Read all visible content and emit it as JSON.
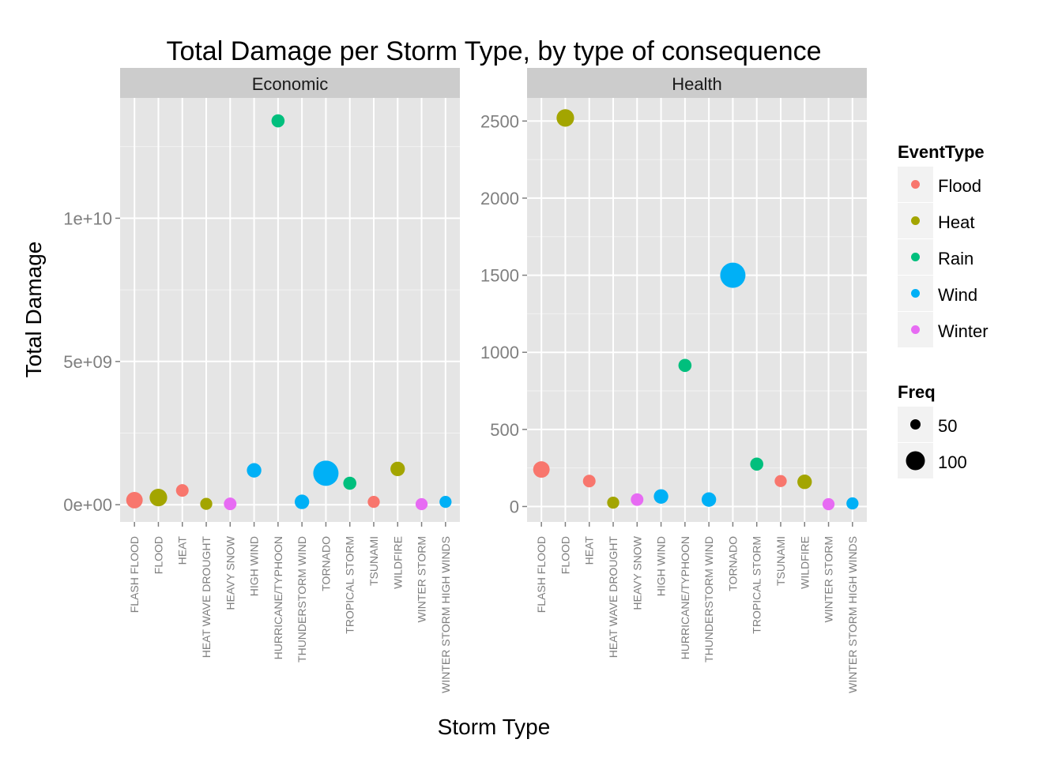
{
  "chart_data": {
    "type": "scatter",
    "title": "Total Damage per Storm Type, by type of consequence",
    "xlabel": "Storm Type",
    "ylabel": "Total Damage",
    "grid": true,
    "legend_position": "right",
    "categories": [
      "FLASH FLOOD",
      "FLOOD",
      "HEAT",
      "HEAT WAVE DROUGHT",
      "HEAVY SNOW",
      "HIGH WIND",
      "HURRICANE/TYPHOON",
      "THUNDERSTORM WIND",
      "TORNADO",
      "TROPICAL STORM",
      "TSUNAMI",
      "WILDFIRE",
      "WINTER STORM",
      "WINTER STORM HIGH WINDS"
    ],
    "event_types": [
      "Flood",
      "Heat",
      "Flood",
      "Heat",
      "Winter",
      "Wind",
      "Rain",
      "Wind",
      "Wind",
      "Rain",
      "Flood",
      "Heat",
      "Winter",
      "Wind"
    ],
    "legend_color": {
      "title": "EventType",
      "entries": [
        {
          "name": "Flood",
          "color": "#F8766D"
        },
        {
          "name": "Heat",
          "color": "#A3A500"
        },
        {
          "name": "Rain",
          "color": "#00BF7D"
        },
        {
          "name": "Wind",
          "color": "#00B0F6"
        },
        {
          "name": "Winter",
          "color": "#E76BF3"
        }
      ]
    },
    "legend_size": {
      "title": "Freq",
      "entries": [
        {
          "label": "50",
          "value": 50
        },
        {
          "label": "100",
          "value": 100
        }
      ]
    },
    "panels": [
      {
        "strip": "Economic",
        "ylim": [
          -600000000,
          14200000000
        ],
        "yticks": [
          {
            "value": 0,
            "label": "0e+00"
          },
          {
            "value": 5000000000,
            "label": "5e+09"
          },
          {
            "value": 10000000000,
            "label": "1e+10"
          }
        ],
        "yminor": [
          2500000000,
          7500000000,
          12500000000
        ],
        "values": [
          160000000,
          250000000,
          500000000,
          30000000,
          30000000,
          1200000000,
          13400000000,
          100000000,
          1100000000,
          750000000,
          100000000,
          1250000000,
          20000000,
          100000000
        ],
        "freq": [
          38,
          44,
          20,
          18,
          20,
          28,
          22,
          28,
          100,
          22,
          18,
          28,
          18,
          18
        ]
      },
      {
        "strip": "Health",
        "ylim": [
          -100,
          2650
        ],
        "yticks": [
          {
            "value": 0,
            "label": "0"
          },
          {
            "value": 500,
            "label": "500"
          },
          {
            "value": 1000,
            "label": "1000"
          },
          {
            "value": 1500,
            "label": "1500"
          },
          {
            "value": 2000,
            "label": "2000"
          },
          {
            "value": 2500,
            "label": "2500"
          }
        ],
        "yminor": [
          250,
          750,
          1250,
          1750,
          2250
        ],
        "values": [
          240,
          2520,
          165,
          25,
          45,
          65,
          915,
          45,
          1500,
          275,
          165,
          160,
          15,
          20
        ],
        "freq": [
          38,
          44,
          20,
          18,
          20,
          28,
          22,
          28,
          100,
          22,
          18,
          28,
          18,
          18
        ]
      }
    ]
  }
}
